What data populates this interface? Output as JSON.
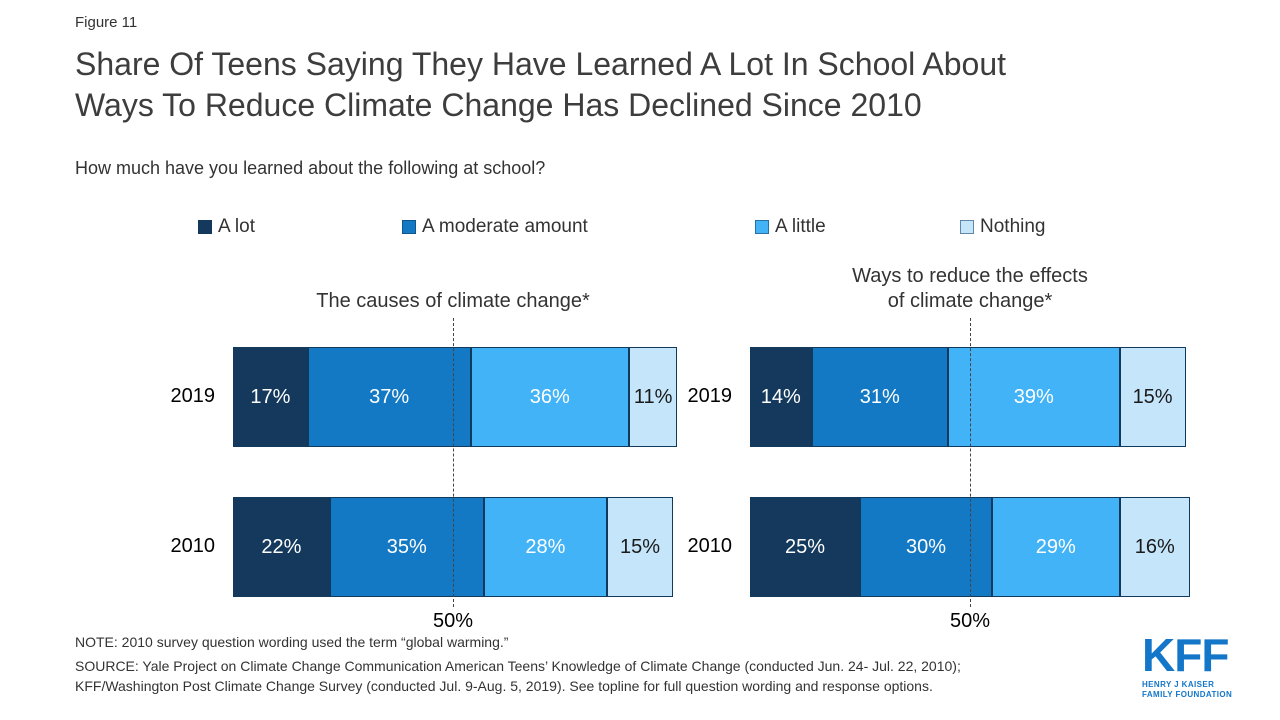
{
  "figure_label": "Figure 11",
  "title_lines": [
    "Share Of Teens Saying They Have Learned A Lot In School About",
    "Ways To Reduce Climate Change Has Declined Since 2010"
  ],
  "question": "How much have you learned about the following at school?",
  "legend": [
    {
      "label": "A lot",
      "color": "#14395C",
      "value_text_color": "#FFFFFF"
    },
    {
      "label": "A moderate amount",
      "color": "#1379C4",
      "value_text_color": "#FFFFFF"
    },
    {
      "label": "A little",
      "color": "#42B3F7",
      "value_text_color": "#FFFFFF"
    },
    {
      "label": "Nothing",
      "color": "#C5E5FA",
      "value_text_color": "#1A1A1A"
    }
  ],
  "chart_data": {
    "type": "bar",
    "subtype": "horizontal_stacked",
    "unit": "percent",
    "xlim": [
      0,
      100
    ],
    "grid": false,
    "categories": [
      "2019",
      "2010"
    ],
    "series_labels": [
      "A lot",
      "A moderate amount",
      "A little",
      "Nothing"
    ],
    "reference_line": {
      "value": 50,
      "label": "50%"
    },
    "panels": [
      {
        "title_lines": [
          "The causes of climate change*"
        ],
        "rows": [
          {
            "category": "2019",
            "values": [
              17,
              37,
              36,
              11
            ]
          },
          {
            "category": "2010",
            "values": [
              22,
              35,
              28,
              15
            ]
          }
        ]
      },
      {
        "title_lines": [
          "Ways to reduce the effects",
          "of climate change*"
        ],
        "rows": [
          {
            "category": "2019",
            "values": [
              14,
              31,
              39,
              15
            ]
          },
          {
            "category": "2010",
            "values": [
              25,
              30,
              29,
              16
            ]
          }
        ]
      }
    ]
  },
  "note": "NOTE: 2010 survey question wording used the term “global warming.”",
  "source_lines": [
    "SOURCE: Yale Project on Climate Change Communication American Teens’ Knowledge of Climate Change (conducted Jun. 24- Jul. 22, 2010);",
    "KFF/Washington Post Climate Change Survey (conducted Jul. 9-Aug. 5, 2019). See topline for full question wording and response options."
  ],
  "logo": {
    "text": "KFF",
    "subtext_line1": "HENRY J KAISER",
    "subtext_line2": "FAMILY FOUNDATION",
    "color": "#1376C8"
  }
}
